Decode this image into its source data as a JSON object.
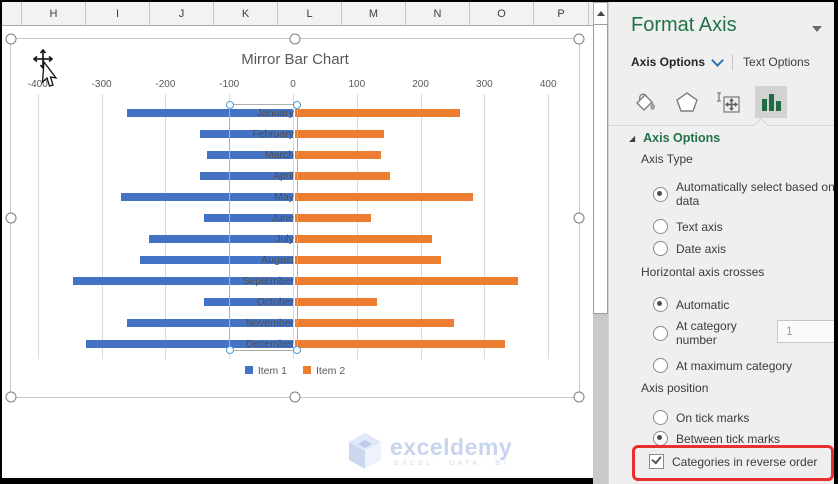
{
  "colors": {
    "bar_blue": "#4472C4",
    "bar_orange": "#ED7D31",
    "excel_green": "#217346",
    "highlight_red": "#E8302E",
    "chevron_blue": "#2E74B5",
    "gridline": "#D9D9D9"
  },
  "worksheet": {
    "column_headers": [
      "H",
      "I",
      "J",
      "K",
      "L",
      "M",
      "N",
      "O",
      "P"
    ]
  },
  "chart_data": {
    "type": "bar",
    "orientation": "horizontal-mirror",
    "title": "Mirror Bar Chart",
    "categories": [
      "January",
      "February",
      "March",
      "April",
      "May",
      "June",
      "July",
      "August",
      "September",
      "October",
      "November",
      "December"
    ],
    "series": [
      {
        "name": "Item 1",
        "color": "#4472C4",
        "side": "left",
        "values": [
          -260,
          -145,
          -135,
          -145,
          -270,
          -140,
          -225,
          -240,
          -345,
          -140,
          -260,
          -325
        ]
      },
      {
        "name": "Item 2",
        "color": "#ED7D31",
        "side": "right",
        "values": [
          260,
          140,
          135,
          150,
          280,
          120,
          215,
          230,
          350,
          130,
          250,
          330
        ]
      }
    ],
    "x_ticks": [
      -400,
      -300,
      -200,
      -100,
      0,
      100,
      200,
      300,
      400
    ],
    "xlim": [
      -400,
      400
    ],
    "grid": true,
    "legend_position": "bottom",
    "categories_in_reverse_order": true
  },
  "watermark": {
    "brand": "exceldemy",
    "tagline": "EXCEL · DATA · BI"
  },
  "pane": {
    "title": "Format Axis",
    "tab_axis_options": "Axis Options",
    "tab_text_options": "Text Options",
    "section_title": "Axis Options",
    "axis_type": {
      "label": "Axis Type",
      "options": [
        {
          "label": "Automatically select based on data",
          "selected": true
        },
        {
          "label": "Text axis",
          "selected": false
        },
        {
          "label": "Date axis",
          "selected": false
        }
      ]
    },
    "horizontal_crosses": {
      "label": "Horizontal axis crosses",
      "options": [
        {
          "label": "Automatic",
          "selected": true
        },
        {
          "label": "At category number",
          "selected": false
        },
        {
          "label": "At maximum category",
          "selected": false
        }
      ],
      "category_number_value": "1"
    },
    "axis_position": {
      "label": "Axis position",
      "options": [
        {
          "label": "On tick marks",
          "selected": false
        },
        {
          "label": "Between tick marks",
          "selected": true
        }
      ]
    },
    "reverse_checkbox": {
      "label": "Categories in reverse order",
      "checked": true
    }
  }
}
